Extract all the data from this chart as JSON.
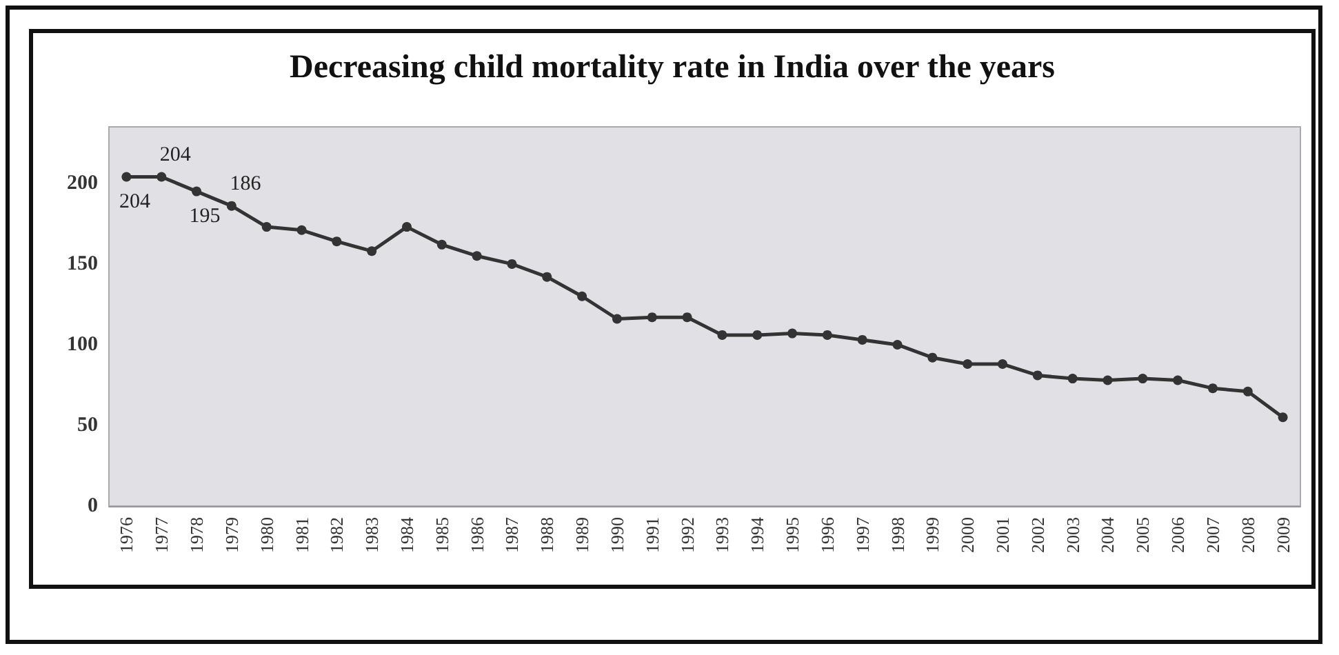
{
  "chart_data": {
    "type": "line",
    "title": "Decreasing child mortality rate in India over the years",
    "categories": [
      "1976",
      "1977",
      "1978",
      "1979",
      "1980",
      "1981",
      "1982",
      "1983",
      "1984",
      "1985",
      "1986",
      "1987",
      "1988",
      "1989",
      "1990",
      "1991",
      "1992",
      "1993",
      "1994",
      "1995",
      "1996",
      "1997",
      "1998",
      "1999",
      "2000",
      "2001",
      "2002",
      "2003",
      "2004",
      "2005",
      "2006",
      "2007",
      "2008",
      "2009"
    ],
    "series": [
      {
        "color": "#333333",
        "values": [
          204,
          204,
          195,
          186,
          173,
          171,
          164,
          158,
          173,
          162,
          155,
          150,
          142,
          130,
          116,
          117,
          117,
          106,
          106,
          107,
          106,
          103,
          100,
          92,
          88,
          88,
          81,
          79,
          78,
          79,
          78,
          73,
          71,
          55
        ],
        "value_labels": [
          "204",
          "204",
          "195",
          "186",
          null,
          null,
          null,
          null,
          null,
          null,
          null,
          null,
          null,
          null,
          null,
          null,
          null,
          null,
          null,
          null,
          null,
          null,
          null,
          null,
          null,
          null,
          null,
          null,
          null,
          null,
          null,
          null,
          null,
          null
        ]
      }
    ],
    "ylim": [
      0,
      235
    ],
    "yticks": [
      0,
      50,
      100,
      150,
      200
    ],
    "grid": false,
    "marker": "circle",
    "line_style": "solid"
  }
}
